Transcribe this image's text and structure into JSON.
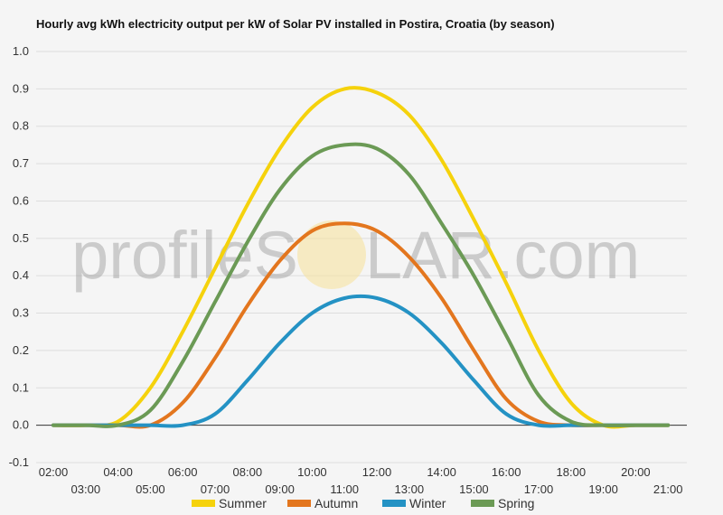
{
  "chart_data": {
    "type": "line",
    "title": "Hourly avg kWh electricity output per kW of Solar PV installed in Postira, Croatia (by season)",
    "watermark": {
      "left": "profileS",
      "right": "LAR.com"
    },
    "xlabel": "",
    "ylabel": "",
    "ylim": [
      -0.1,
      1.0
    ],
    "yticks": [
      "-0.1",
      "0.0",
      "0.1",
      "0.2",
      "0.3",
      "0.4",
      "0.5",
      "0.6",
      "0.7",
      "0.8",
      "0.9",
      "1.0"
    ],
    "x": [
      "02:00",
      "03:00",
      "04:00",
      "05:00",
      "06:00",
      "07:00",
      "08:00",
      "09:00",
      "10:00",
      "11:00",
      "12:00",
      "13:00",
      "14:00",
      "15:00",
      "16:00",
      "17:00",
      "18:00",
      "19:00",
      "20:00",
      "21:00"
    ],
    "grid": true,
    "legend": "bottom",
    "series": [
      {
        "name": "Summer",
        "color": "#f5d20c",
        "values": [
          0.0,
          0.0,
          0.01,
          0.1,
          0.25,
          0.42,
          0.59,
          0.74,
          0.85,
          0.9,
          0.89,
          0.83,
          0.71,
          0.55,
          0.38,
          0.2,
          0.06,
          0.0,
          0.0,
          0.0
        ]
      },
      {
        "name": "Autumn",
        "color": "#e3761e",
        "values": [
          0.0,
          0.0,
          0.0,
          0.0,
          0.06,
          0.18,
          0.32,
          0.44,
          0.52,
          0.54,
          0.52,
          0.45,
          0.34,
          0.2,
          0.07,
          0.01,
          0.0,
          0.0,
          0.0,
          0.0
        ]
      },
      {
        "name": "Winter",
        "color": "#2492c4",
        "values": [
          0.0,
          0.0,
          0.0,
          0.0,
          0.0,
          0.03,
          0.12,
          0.22,
          0.3,
          0.34,
          0.34,
          0.3,
          0.22,
          0.12,
          0.03,
          0.0,
          0.0,
          0.0,
          0.0,
          0.0
        ]
      },
      {
        "name": "Spring",
        "color": "#6b9a55",
        "values": [
          0.0,
          0.0,
          0.0,
          0.04,
          0.17,
          0.33,
          0.49,
          0.63,
          0.72,
          0.75,
          0.74,
          0.67,
          0.54,
          0.4,
          0.24,
          0.08,
          0.01,
          0.0,
          0.0,
          0.0
        ]
      }
    ]
  }
}
